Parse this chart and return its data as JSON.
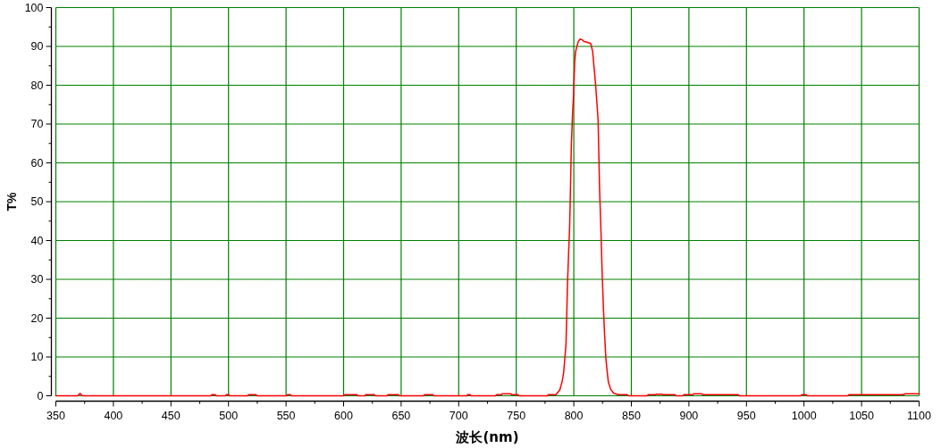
{
  "chart_data": {
    "type": "line",
    "xlabel": "波长(nm)",
    "ylabel": "T%",
    "x": [
      350,
      369,
      371,
      373,
      484.9,
      485.4,
      488.5,
      489,
      497.5,
      498,
      500.4,
      500.9,
      517,
      517.5,
      524,
      524.5,
      550.6,
      551.1,
      553.9,
      554.4,
      600.5,
      601,
      611.6,
      612.1,
      618.6,
      619.1,
      626.9,
      627.4,
      638,
      638.5,
      647.7,
      648.2,
      669.8,
      670.3,
      677.6,
      678.1,
      707.2,
      707.7,
      710,
      710.5,
      732.2,
      732.7,
      737.2,
      737.7,
      745.5,
      746,
      751.6,
      752.1,
      777.3,
      777.8,
      784.6,
      785.2,
      787.8,
      789.8,
      791.1,
      792.2,
      793.2,
      793.8,
      794.5,
      795.6,
      796.4,
      797.1,
      797.9,
      799,
      799.7,
      800.3,
      800.8,
      801.6,
      802.9,
      803.9,
      805.5,
      807.3,
      808.6,
      811.2,
      814.6,
      816.4,
      817.7,
      819,
      820.1,
      821.1,
      821.6,
      822.4,
      823.4,
      824,
      824.7,
      825.8,
      826.8,
      827.9,
      828.9,
      830,
      832,
      834.6,
      838.5,
      846.4,
      847.7,
      864,
      864.5,
      871.2,
      871.6,
      876.9,
      877.3,
      888,
      888.5,
      895,
      895.4,
      903.6,
      904,
      911.3,
      911.7,
      942.9,
      943.4,
      997.5,
      998,
      1002,
      1002.5,
      1038.5,
      1039,
      1087,
      1087.4,
      1100
    ],
    "series": [
      {
        "color": "#ff0000",
        "values": [
          0,
          0,
          0.6,
          0,
          0,
          0.3,
          0.3,
          0,
          0,
          0.3,
          0.3,
          0,
          0,
          0.3,
          0.3,
          0,
          0,
          0.3,
          0.3,
          0,
          0,
          0.3,
          0.3,
          0,
          0,
          0.3,
          0.3,
          0,
          0,
          0.3,
          0.3,
          0,
          0,
          0.3,
          0.3,
          0,
          0,
          0.3,
          0.3,
          0,
          0,
          0.3,
          0.3,
          0.5,
          0.5,
          0.3,
          0.3,
          0,
          0,
          0.3,
          0.3,
          0.6,
          1.5,
          3.6,
          5.8,
          9.5,
          13.2,
          19.9,
          28.7,
          37.6,
          43.6,
          53.2,
          65,
          73.2,
          76.9,
          82.1,
          86.1,
          88.7,
          90.2,
          91.3,
          91.9,
          91.7,
          91.3,
          91.1,
          90.8,
          88.7,
          84.3,
          79.9,
          75.4,
          71,
          64.3,
          53.2,
          44.3,
          38.4,
          31,
          22.1,
          15.4,
          9.5,
          6.5,
          3.6,
          1.7,
          0.7,
          0.3,
          0.3,
          0,
          0,
          0.3,
          0.3,
          0.4,
          0.4,
          0.3,
          0.3,
          0,
          0,
          0.3,
          0.3,
          0.5,
          0.5,
          0.3,
          0.3,
          0,
          0,
          0.3,
          0.3,
          0,
          0,
          0.3,
          0.3,
          0.5,
          0.5
        ]
      }
    ],
    "xlim": [
      350,
      1100
    ],
    "ylim": [
      0,
      100
    ],
    "xticks": [
      350,
      {
        "value": 375,
        "label": null
      },
      400,
      {
        "value": 425,
        "label": null
      },
      450,
      {
        "value": 475,
        "label": null
      },
      500,
      {
        "value": 525,
        "label": null
      },
      550,
      {
        "value": 575,
        "label": null
      },
      600,
      {
        "value": 625,
        "label": null
      },
      650,
      {
        "value": 675,
        "label": null
      },
      700,
      {
        "value": 725,
        "label": null
      },
      750,
      {
        "value": 775,
        "label": null
      },
      800,
      {
        "value": 825,
        "label": null
      },
      850,
      {
        "value": 875,
        "label": null
      },
      900,
      {
        "value": 925,
        "label": null
      },
      950,
      {
        "value": 975,
        "label": null
      },
      1000,
      {
        "value": 1025,
        "label": null
      },
      1050,
      {
        "value": 1075,
        "label": null
      },
      1100
    ],
    "yticks": [
      0,
      {
        "value": 5,
        "label": null
      },
      10,
      {
        "value": 15,
        "label": null
      },
      20,
      {
        "value": 25,
        "label": null
      },
      30,
      {
        "value": 35,
        "label": null
      },
      40,
      {
        "value": 45,
        "label": null
      },
      50,
      {
        "value": 55,
        "label": null
      },
      60,
      {
        "value": 65,
        "label": null
      },
      70,
      {
        "value": 75,
        "label": null
      },
      80,
      {
        "value": 85,
        "label": null
      },
      90,
      {
        "value": 95,
        "label": null
      },
      100
    ],
    "grid": true,
    "marker": "none",
    "line_style": "solid"
  }
}
